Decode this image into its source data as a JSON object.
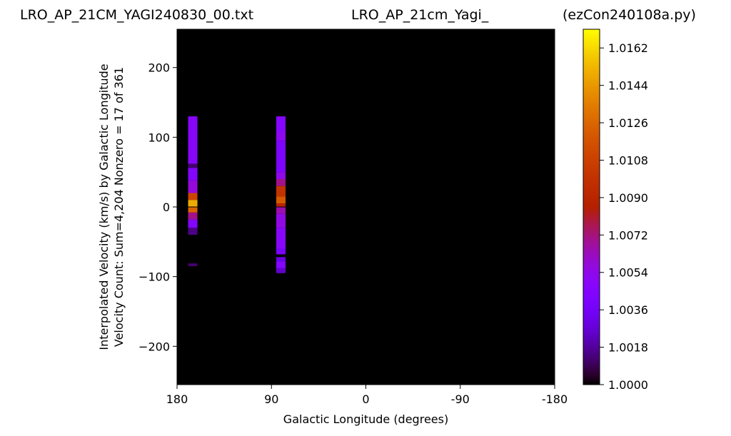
{
  "titles": {
    "left": "LRO_AP_21CM_YAGI240830_00.txt",
    "center": "LRO_AP_21cm_Yagi_",
    "right": "(ezCon240108a.py)"
  },
  "chart_data": {
    "type": "heatmap",
    "xlabel": "Galactic Longitude (degrees)",
    "ylabel_line1": "Interpolated Velocity (km/s) by Galactic Longitude",
    "ylabel_line2": "Velocity Count: Sum=4,204 Nonzero = 17 of 361",
    "xlim": [
      180,
      -180
    ],
    "ylim": [
      -255,
      255
    ],
    "x_ticks": [
      180,
      90,
      0,
      -90,
      -180
    ],
    "x_tick_labels": [
      "180",
      "90",
      "0",
      "-90",
      "-180"
    ],
    "y_ticks": [
      200,
      100,
      0,
      -100,
      -200
    ],
    "y_tick_labels": [
      "200",
      "100",
      "0",
      "−100",
      "−200"
    ],
    "colormap": "gnuplot",
    "colorbar": {
      "min": 1.0,
      "max": 1.0171,
      "ticks": [
        1.0162,
        1.0144,
        1.0126,
        1.0108,
        1.009,
        1.0072,
        1.0054,
        1.0036,
        1.0018,
        1.0
      ],
      "tick_labels": [
        "1.0162",
        "1.0144",
        "1.0126",
        "1.0108",
        "1.0090",
        "1.0072",
        "1.0054",
        "1.0036",
        "1.0018",
        "1.0000"
      ]
    },
    "background_value": 1.0,
    "columns": [
      {
        "longitude": 165,
        "vel_range": [
          -40,
          130
        ],
        "segments": [
          {
            "v0": 62,
            "v1": 130,
            "value": 1.0048
          },
          {
            "v0": 56,
            "v1": 62,
            "value": 1.0012
          },
          {
            "v0": 38,
            "v1": 56,
            "value": 1.0046
          },
          {
            "v0": 20,
            "v1": 38,
            "value": 1.0058
          },
          {
            "v0": 10,
            "v1": 20,
            "value": 1.011
          },
          {
            "v0": 0,
            "v1": 10,
            "value": 1.015
          },
          {
            "v0": -8,
            "v1": 0,
            "value": 1.0125
          },
          {
            "v0": -18,
            "v1": -8,
            "value": 1.007
          },
          {
            "v0": -30,
            "v1": -18,
            "value": 1.0045
          },
          {
            "v0": -40,
            "v1": -30,
            "value": 1.0015
          },
          {
            "v0": -85,
            "v1": -81,
            "value": 1.0012
          }
        ]
      },
      {
        "longitude": 81,
        "vel_range": [
          -95,
          130
        ],
        "segments": [
          {
            "v0": 108,
            "v1": 130,
            "value": 1.0047
          },
          {
            "v0": 95,
            "v1": 108,
            "value": 1.0052
          },
          {
            "v0": 50,
            "v1": 95,
            "value": 1.0042
          },
          {
            "v0": 40,
            "v1": 50,
            "value": 1.0054
          },
          {
            "v0": 30,
            "v1": 40,
            "value": 1.007
          },
          {
            "v0": 15,
            "v1": 30,
            "value": 1.01
          },
          {
            "v0": 5,
            "v1": 15,
            "value": 1.012
          },
          {
            "v0": 0,
            "v1": 5,
            "value": 1.009
          },
          {
            "v0": -10,
            "v1": 0,
            "value": 1.0065
          },
          {
            "v0": -30,
            "v1": -10,
            "value": 1.0055
          },
          {
            "v0": -60,
            "v1": -30,
            "value": 1.0048
          },
          {
            "v0": -68,
            "v1": -60,
            "value": 1.004
          },
          {
            "v0": -78,
            "v1": -72,
            "value": 1.003
          },
          {
            "v0": -88,
            "v1": -78,
            "value": 1.0045
          },
          {
            "v0": -95,
            "v1": -88,
            "value": 1.0025
          }
        ]
      }
    ]
  }
}
